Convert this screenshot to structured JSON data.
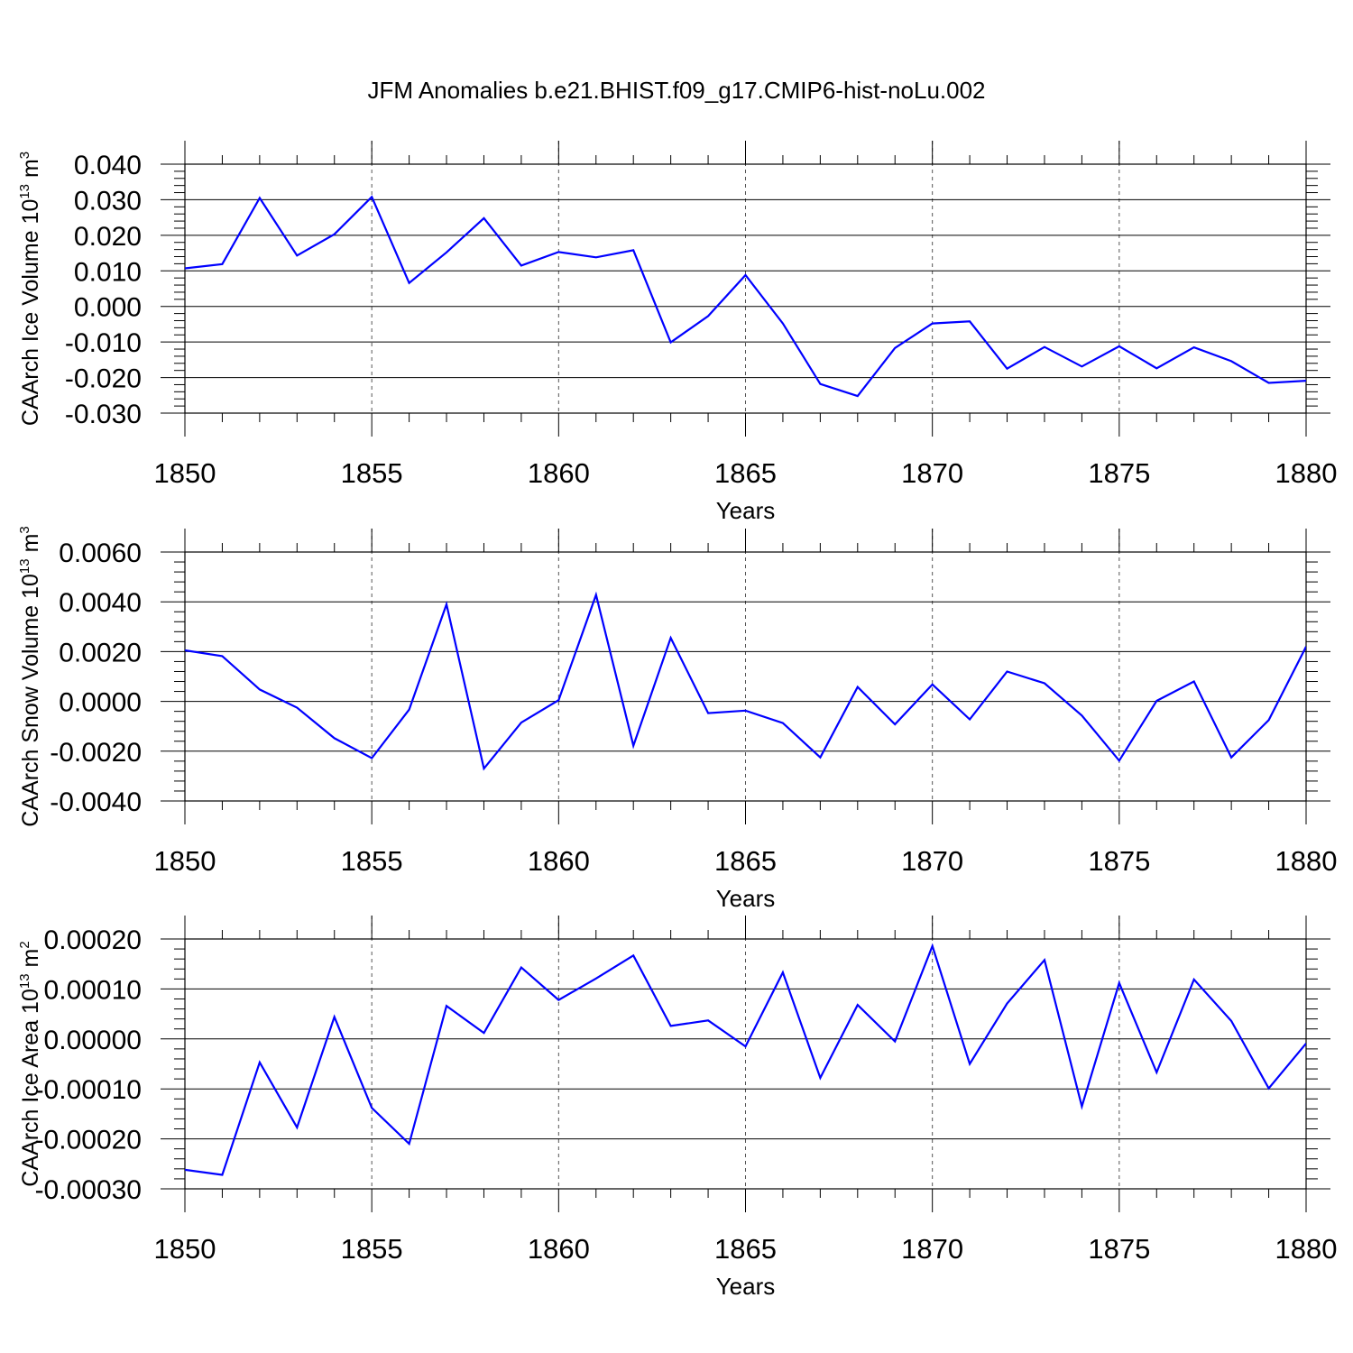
{
  "title": "JFM Anomalies b.e21.BHIST.f09_g17.CMIP6-hist-noLu.002",
  "line_color": "#0000ff",
  "chart_data": [
    {
      "type": "line",
      "ylabel": "CAArch Ice Volume 10",
      "ylabel_exp": "13",
      "ylabel_unit": " m",
      "ylabel_unit_exp": "3",
      "xlabel": "Years",
      "xlim": [
        1850,
        1880
      ],
      "ylim": [
        -0.03,
        0.04
      ],
      "x_ticks": [
        "1850",
        "1855",
        "1860",
        "1865",
        "1870",
        "1875",
        "1880"
      ],
      "y_ticks": [
        "0.040",
        "0.030",
        "0.020",
        "0.010",
        "0.000",
        "-0.010",
        "-0.020",
        "-0.030"
      ],
      "grid": "dashed vertical at major x ticks",
      "x": [
        1850,
        1851,
        1852,
        1853,
        1854,
        1855,
        1856,
        1857,
        1858,
        1859,
        1860,
        1861,
        1862,
        1863,
        1864,
        1865,
        1866,
        1867,
        1868,
        1869,
        1870,
        1871,
        1872,
        1873,
        1874,
        1875,
        1876,
        1877,
        1878,
        1879,
        1880
      ],
      "values": [
        0.0107,
        0.0119,
        0.0305,
        0.0143,
        0.0203,
        0.0308,
        0.0066,
        0.0152,
        0.0248,
        0.0115,
        0.0153,
        0.0138,
        0.0158,
        -0.0101,
        -0.0027,
        0.0088,
        -0.0048,
        -0.0218,
        -0.0252,
        -0.0117,
        -0.0048,
        -0.0042,
        -0.0175,
        -0.0114,
        -0.0169,
        -0.0112,
        -0.0174,
        -0.0115,
        -0.0154,
        -0.0215,
        -0.0209
      ]
    },
    {
      "type": "line",
      "ylabel": "CAArch Snow Volume 10",
      "ylabel_exp": "13",
      "ylabel_unit": " m",
      "ylabel_unit_exp": "3",
      "xlabel": "Years",
      "xlim": [
        1850,
        1880
      ],
      "ylim": [
        -0.004,
        0.006
      ],
      "x_ticks": [
        "1850",
        "1855",
        "1860",
        "1865",
        "1870",
        "1875",
        "1880"
      ],
      "y_ticks": [
        "0.0060",
        "0.0040",
        "0.0020",
        "0.0000",
        "-0.0020",
        "-0.0040"
      ],
      "grid": "dashed vertical at major x ticks",
      "x": [
        1850,
        1851,
        1852,
        1853,
        1854,
        1855,
        1856,
        1857,
        1858,
        1859,
        1860,
        1861,
        1862,
        1863,
        1864,
        1865,
        1866,
        1867,
        1868,
        1869,
        1870,
        1871,
        1872,
        1873,
        1874,
        1875,
        1876,
        1877,
        1878,
        1879,
        1880
      ],
      "values": [
        0.00205,
        0.00182,
        0.00048,
        -0.00025,
        -0.00148,
        -0.00228,
        -0.00033,
        0.0039,
        -0.0027,
        -0.00085,
        5e-05,
        0.00428,
        -0.00178,
        0.00255,
        -0.00047,
        -0.00037,
        -0.00087,
        -0.00225,
        0.00058,
        -0.00092,
        0.00068,
        -0.00072,
        0.0012,
        0.00073,
        -0.00057,
        -0.00238,
        2e-05,
        0.0008,
        -0.00225,
        -0.00075,
        0.0022
      ]
    },
    {
      "type": "line",
      "ylabel": "CAArch Ice Area 10",
      "ylabel_exp": "13",
      "ylabel_unit": " m",
      "ylabel_unit_exp": "2",
      "xlabel": "Years",
      "xlim": [
        1850,
        1880
      ],
      "ylim": [
        -0.0003,
        0.0002
      ],
      "x_ticks": [
        "1850",
        "1855",
        "1860",
        "1865",
        "1870",
        "1875",
        "1880"
      ],
      "y_ticks": [
        "0.00020",
        "0.00010",
        "0.00000",
        "-0.00010",
        "-0.00020",
        "-0.00030"
      ],
      "grid": "dashed vertical at major x ticks",
      "x": [
        1850,
        1851,
        1852,
        1853,
        1854,
        1855,
        1856,
        1857,
        1858,
        1859,
        1860,
        1861,
        1862,
        1863,
        1864,
        1865,
        1866,
        1867,
        1868,
        1869,
        1870,
        1871,
        1872,
        1873,
        1874,
        1875,
        1876,
        1877,
        1878,
        1879,
        1880
      ],
      "values": [
        -0.000262,
        -0.000272,
        -4.7e-05,
        -0.000177,
        4.4e-05,
        -0.000138,
        -0.00021,
        6.6e-05,
        1.2e-05,
        0.000143,
        7.8e-05,
        0.000121,
        0.000167,
        2.6e-05,
        3.7e-05,
        -1.5e-05,
        0.000133,
        -7.8e-05,
        6.8e-05,
        -5e-06,
        0.000186,
        -5e-05,
        7.1e-05,
        0.000158,
        -0.000135,
        0.000112,
        -6.7e-05,
        0.000119,
        3.6e-05,
        -9.9e-05,
        -9e-06
      ]
    }
  ]
}
